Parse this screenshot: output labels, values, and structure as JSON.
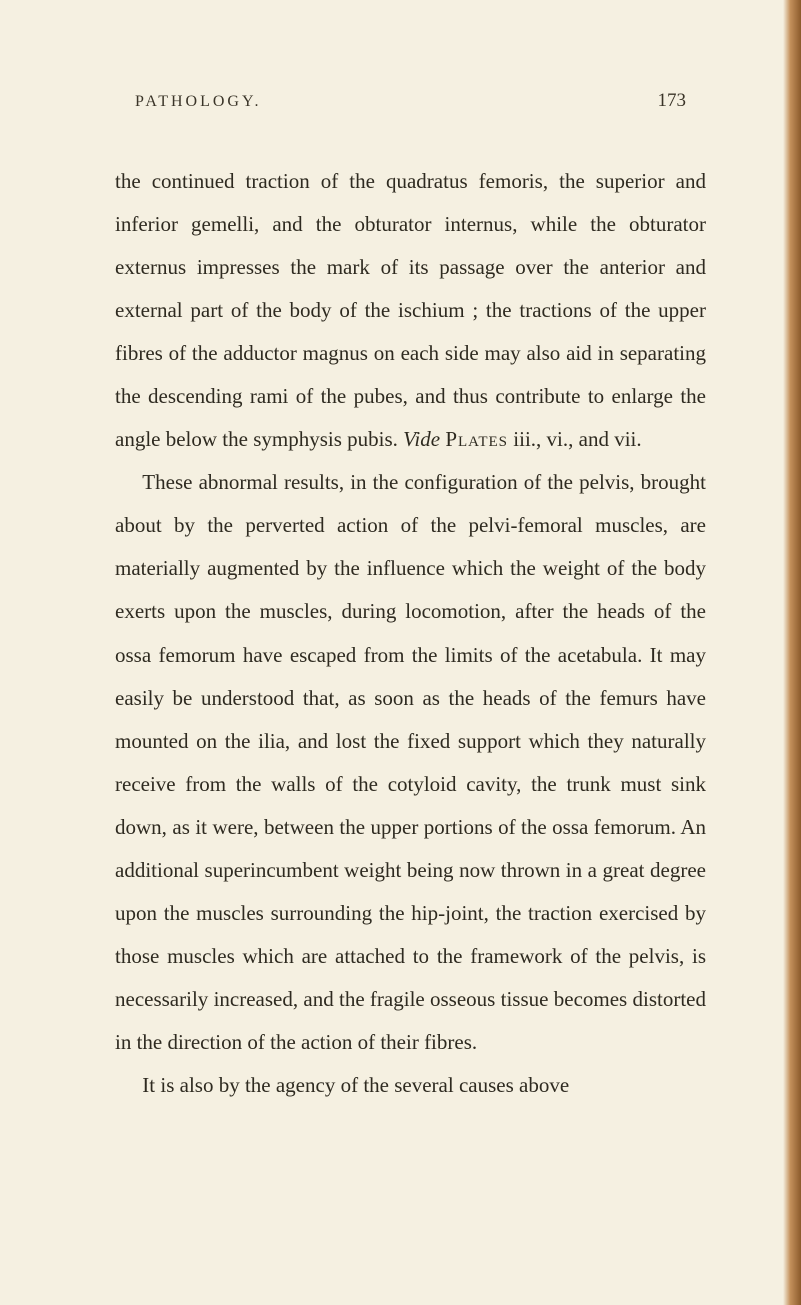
{
  "page": {
    "header_title": "PATHOLOGY.",
    "page_number": "173",
    "paragraphs": {
      "p1": "the continued traction of the quadratus femoris, the superior and inferior gemelli, and the obturator internus, while the obturator externus impresses the mark of its passage over the anterior and external part of the body of the ischium ; the tractions of the upper fibres of the adductor magnus on each side may also aid in separating the descending rami of the pubes, and thus contribute to enlarge the angle below the symphysis pubis. ",
      "p1_italic": "Vide",
      "p1_after_italic": " ",
      "p1_smallcaps": "Plates",
      "p1_end": " iii., vi., and vii.",
      "p2": "These abnormal results, in the configuration of the pelvis, brought about by the perverted action of the pelvi-femoral muscles, are materially augmented by the influence which the weight of the body exerts upon the muscles, during locomotion, after the heads of the ossa femorum have escaped from the limits of the acetabula. It may easily be understood that, as soon as the heads of the femurs have mounted on the ilia, and lost the fixed support which they naturally receive from the walls of the cotyloid cavity, the trunk must sink down, as it were, between the upper portions of the ossa femorum. An additional superincumbent weight being now thrown in a great degree upon the muscles surrounding the hip-joint, the traction exercised by those muscles which are attached to the framework of the pelvis, is necessarily increased, and the fragile osseous tissue becomes distorted in the direction of the action of their fibres.",
      "p3": "It is also by the agency of the several causes above"
    }
  },
  "colors": {
    "background": "#f5f0e1",
    "text": "#2e2a20",
    "header_text": "#3a3428"
  },
  "typography": {
    "body_fontsize": 21,
    "header_fontsize": 16,
    "pagenum_fontsize": 19,
    "line_height": 2.05
  }
}
